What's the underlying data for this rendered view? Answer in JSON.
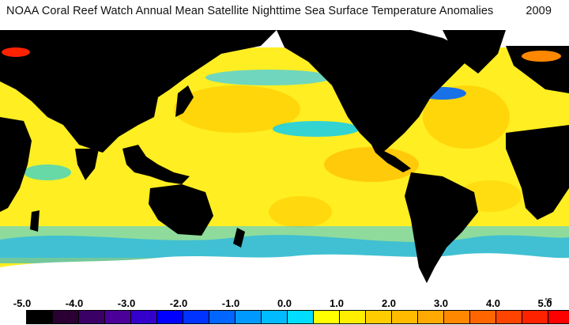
{
  "title": {
    "text": "NOAA Coral Reef Watch Annual Mean Satellite Nighttime Sea Surface Temperature Anomalies",
    "year": "2009"
  },
  "legend": {
    "labels": [
      "-5.0",
      "-4.0",
      "-3.0",
      "-2.0",
      "-1.0",
      "0.0",
      "1.0",
      "2.0",
      "3.0",
      "4.0",
      "5.0"
    ],
    "unit": "°C",
    "colors": [
      "#000000",
      "#2a0033",
      "#3a0066",
      "#4b0099",
      "#3300cc",
      "#0000ff",
      "#0033ff",
      "#0066ff",
      "#0099ff",
      "#00bbff",
      "#00ddff",
      "#ffff00",
      "#ffee00",
      "#ffcc00",
      "#ffbb00",
      "#ffaa00",
      "#ff8800",
      "#ff6600",
      "#ff4400",
      "#ff2200",
      "#ff0000"
    ]
  },
  "map": {
    "land_color": "#000000",
    "ice_color": "#ffffff",
    "ocean_base_color": "#ffee22",
    "warm_anomaly_color": "#ffaa00",
    "cool_anomaly_color": "#00bbff",
    "strong_cool_color": "#0000ff",
    "strong_warm_color": "#ff2200"
  }
}
